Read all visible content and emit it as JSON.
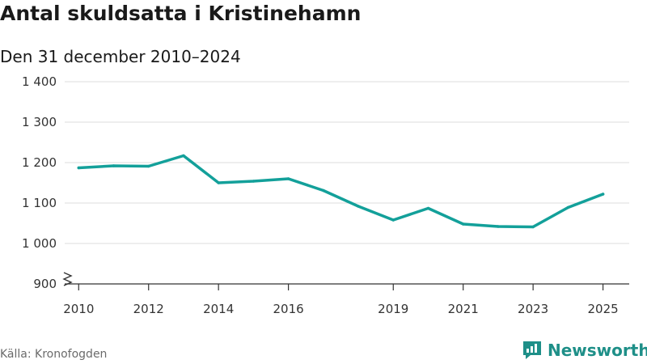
{
  "header": {
    "title": "Antal skuldsatta i Kristinehamn",
    "subtitle": "Den 31 december 2010–2024"
  },
  "footer": {
    "source": "Källa: Kronofogden",
    "brand": "Newsworthy"
  },
  "colors": {
    "line": "#13a09a",
    "grid": "#dcdcdc",
    "axis": "#333333",
    "brand": "#1e8f88"
  },
  "chart_data": {
    "type": "line",
    "title": "Antal skuldsatta i Kristinehamn",
    "subtitle": "Den 31 december 2010–2024",
    "xlabel": "",
    "ylabel": "",
    "x": [
      2010,
      2011,
      2012,
      2013,
      2014,
      2015,
      2016,
      2017,
      2018,
      2019,
      2020,
      2021,
      2022,
      2023,
      2024,
      2025
    ],
    "series": [
      {
        "name": "Antal skuldsatta",
        "values": [
          1187,
          1192,
          1191,
          1217,
          1150,
          1154,
          1160,
          1131,
          1092,
          1058,
          1087,
          1048,
          1042,
          1041,
          1089,
          1122
        ]
      }
    ],
    "ylim": [
      900,
      1400
    ],
    "yticks": [
      900,
      1000,
      1100,
      1200,
      1300,
      1400
    ],
    "ytick_labels": [
      "900",
      "1 000",
      "1 100",
      "1 200",
      "1 300",
      "1 400"
    ],
    "xticks": [
      2010,
      2012,
      2014,
      2016,
      2019,
      2021,
      2023,
      2025
    ],
    "xtick_labels": [
      "2010",
      "2012",
      "2014",
      "2016",
      "2019",
      "2021",
      "2023",
      "2025"
    ],
    "axis_break": true,
    "grid": true
  }
}
